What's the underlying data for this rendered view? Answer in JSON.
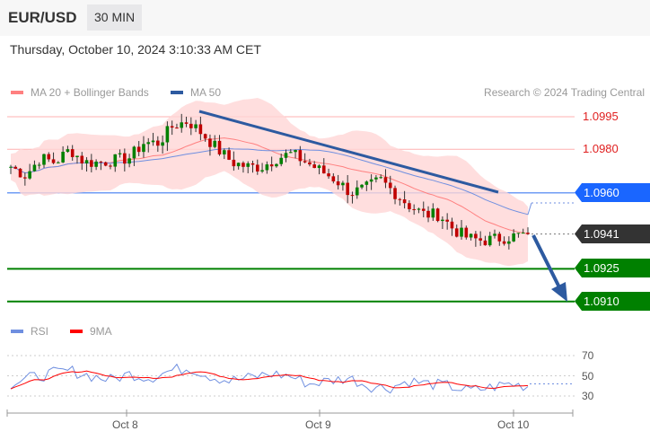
{
  "header": {
    "symbol": "EUR/USD",
    "timeframe": "30 MIN",
    "datetime": "Thursday, October 10, 2024 3:10:33 AM CET"
  },
  "legend": {
    "ma20": "MA 20 + Bollinger Bands",
    "ma50": "MA 50",
    "credit": "Research © 2024 Trading Central",
    "rsi": "RSI",
    "rsi_ma": "9MA"
  },
  "colors": {
    "ma20": "#ff8080",
    "ma50": "#2d5aa0",
    "support": "#008000",
    "pivot": "#1a66ff",
    "last": "#333333",
    "resistance": "#e02020"
  },
  "levels": {
    "r1": "1.0995",
    "r2": "1.0980",
    "pivot": "1.0960",
    "last": "1.0941",
    "s1": "1.0925",
    "s2": "1.0910"
  },
  "chart_data": {
    "type": "candlestick",
    "approx_close_path": [
      1.0972,
      1.0968,
      1.0976,
      1.0974,
      1.098,
      1.0974,
      1.0974,
      1.0975,
      1.0976,
      1.0983,
      1.0983,
      1.0991,
      1.0993,
      1.0987,
      1.098,
      1.0974,
      1.0972,
      1.0972,
      1.0976,
      1.0978,
      1.0974,
      1.097,
      1.0966,
      1.096,
      1.0962,
      1.0966,
      1.096,
      1.0954,
      1.095,
      1.095,
      1.0943,
      1.0939,
      1.0938,
      1.0939,
      1.094,
      1.0941
    ],
    "ylim": [
      1.0905,
      1.1
    ],
    "x_ticks": [
      "Oct 8",
      "Oct 9",
      "Oct 10"
    ],
    "rsi": {
      "ticks": [
        "70",
        "50",
        "30"
      ],
      "ylim": [
        20,
        80
      ],
      "approx_path": [
        42,
        48,
        52,
        55,
        50,
        46,
        52,
        48,
        55,
        58,
        50,
        45,
        48,
        52,
        50,
        42,
        45,
        48,
        40,
        38,
        45,
        42,
        40,
        35,
        38,
        42,
        40
      ]
    }
  }
}
